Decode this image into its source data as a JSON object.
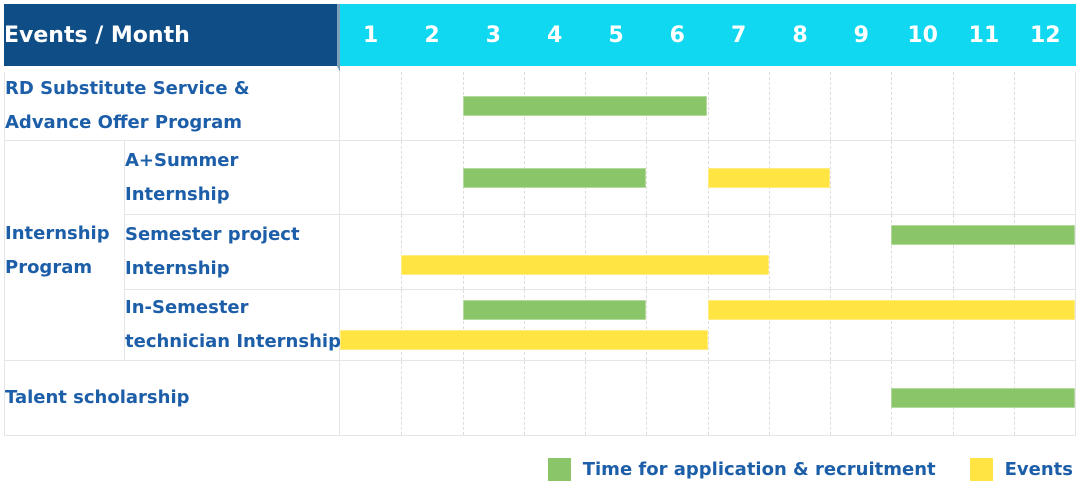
{
  "colors": {
    "header_navy": "#0F4D86",
    "header_cyan": "#0FD8F0",
    "header_divider": "#7D9FB8",
    "label_blue": "#1D5EA8",
    "green": "#8BC56A",
    "yellow": "#FFE442",
    "gridline": "#DDDDDD",
    "row_border": "#E5E5E5"
  },
  "header": {
    "title": "Events / Month",
    "months": [
      "1",
      "2",
      "3",
      "4",
      "5",
      "6",
      "7",
      "8",
      "9",
      "10",
      "11",
      "12"
    ]
  },
  "group_label_lines": [
    "Internship",
    "Program"
  ],
  "rows": [
    {
      "group": "",
      "label_lines": [
        "RD Substitute Service &",
        "Advance Offer Program"
      ]
    },
    {
      "group": "Internship Program",
      "label_lines": [
        "A+Summer",
        "Internship"
      ]
    },
    {
      "group": "Internship Program",
      "label_lines": [
        "Semester project",
        "Internship"
      ]
    },
    {
      "group": "Internship Program",
      "label_lines": [
        "In-Semester",
        "technician Internship"
      ]
    },
    {
      "group": "",
      "label_lines": [
        "Talent scholarship"
      ]
    }
  ],
  "legend": {
    "items": [
      {
        "label": "Time for application & recruitment",
        "color_key": "green"
      },
      {
        "label": "Events",
        "color_key": "yellow"
      }
    ]
  },
  "chart_data": {
    "type": "gantt",
    "x_unit": "month",
    "x_ticks": [
      1,
      2,
      3,
      4,
      5,
      6,
      7,
      8,
      9,
      10,
      11,
      12
    ],
    "xlim": [
      1,
      12
    ],
    "grid": "vertical-dashed",
    "legend_position": "bottom-right",
    "series_legend": {
      "green": "Time for application & recruitment",
      "yellow": "Events"
    },
    "rows": [
      {
        "label": "RD Substitute Service & Advance Offer Program",
        "group": "",
        "bars": [
          {
            "series": "Time for application & recruitment",
            "color_key": "green",
            "start": 3,
            "end": 6,
            "track": "single"
          }
        ]
      },
      {
        "label": "A+Summer Internship",
        "group": "Internship Program",
        "bars": [
          {
            "series": "Time for application & recruitment",
            "color_key": "green",
            "start": 3,
            "end": 5,
            "track": "single"
          },
          {
            "series": "Events",
            "color_key": "yellow",
            "start": 7,
            "end": 8,
            "track": "single"
          }
        ]
      },
      {
        "label": "Semester project Internship",
        "group": "Internship Program",
        "bars": [
          {
            "series": "Time for application & recruitment",
            "color_key": "green",
            "start": 10,
            "end": 12,
            "track": "top"
          },
          {
            "series": "Events",
            "color_key": "yellow",
            "start": 2,
            "end": 7,
            "track": "bottom"
          }
        ]
      },
      {
        "label": "In-Semester technician Internship",
        "group": "Internship Program",
        "bars": [
          {
            "series": "Time for application & recruitment",
            "color_key": "green",
            "start": 3,
            "end": 5,
            "track": "top"
          },
          {
            "series": "Events",
            "color_key": "yellow",
            "start": 7,
            "end": 12,
            "track": "top"
          },
          {
            "series": "Events",
            "color_key": "yellow",
            "start": 1,
            "end": 6,
            "track": "bottom"
          }
        ]
      },
      {
        "label": "Talent scholarship",
        "group": "",
        "bars": [
          {
            "series": "Time for application & recruitment",
            "color_key": "green",
            "start": 10,
            "end": 12,
            "track": "single"
          }
        ]
      }
    ]
  }
}
